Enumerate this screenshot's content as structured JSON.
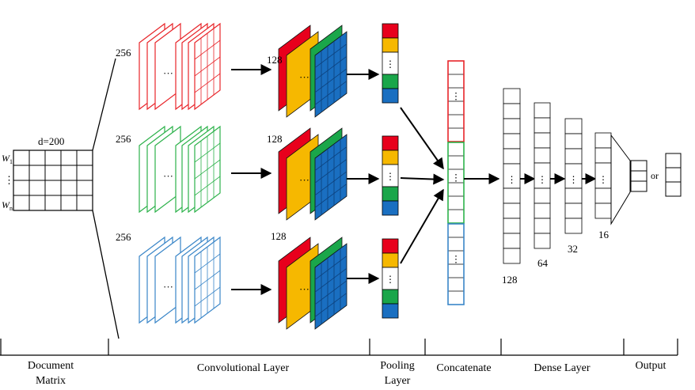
{
  "document_matrix": {
    "dim_label": "d=200",
    "row_labels": [
      "W1",
      "⋮",
      "Wn"
    ],
    "w1_base": "W",
    "w1_sub": "1",
    "wn_base": "W",
    "wn_sub": "n"
  },
  "conv": {
    "filters": [
      "256",
      "256",
      "256"
    ],
    "maps": [
      "128",
      "128",
      "128"
    ],
    "ellipsis": "···",
    "colors": {
      "branch1": "#e8252a",
      "branch2": "#2db24b",
      "branch3": "#3a86c8"
    }
  },
  "pooling": {
    "ellipsis": "⋮",
    "cell_colors": [
      "#e8001c",
      "#f6b800",
      "#ffffff",
      "#1aa64a",
      "#1a6fc1"
    ]
  },
  "concat": {
    "ellipsis": "⋮",
    "segment_colors": [
      "#e8252a",
      "#2db24b",
      "#3a86c8"
    ]
  },
  "dense": {
    "sizes": [
      "128",
      "64",
      "32",
      "16"
    ],
    "ellipsis": "⋮"
  },
  "output": {
    "or_label": "or"
  },
  "sections": {
    "document_matrix_line1": "Document",
    "document_matrix_line2": "Matrix",
    "convolutional": "Convolutional Layer",
    "pooling_line1": "Pooling",
    "pooling_line2": "Layer",
    "concatenate": "Concatenate",
    "dense": "Dense Layer",
    "output": "Output"
  }
}
